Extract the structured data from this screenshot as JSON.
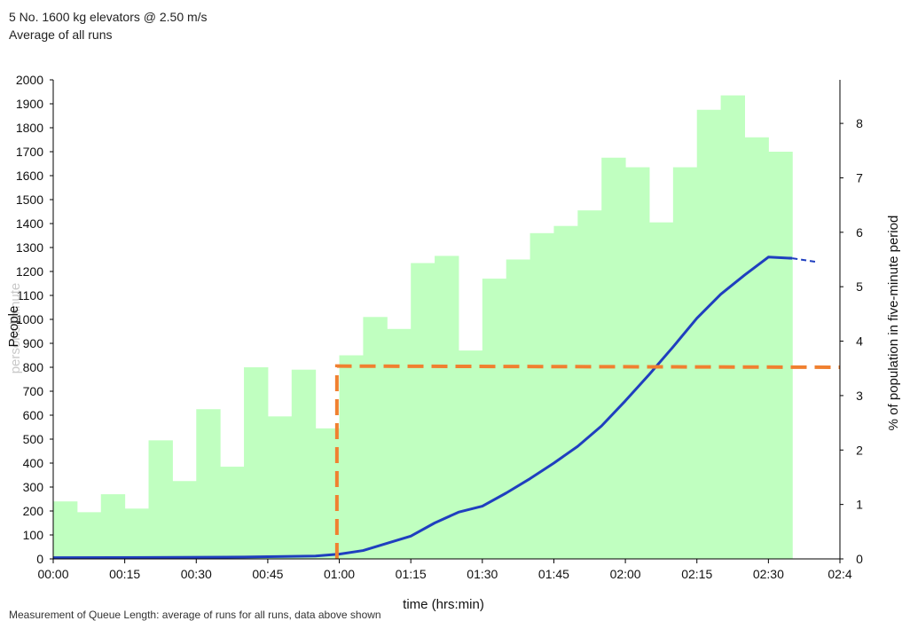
{
  "chart_data": {
    "type": "bar",
    "title": "5 No. 1600 kg elevators @ 2.50 m/s",
    "subtitle": "Average of all runs",
    "xlabel": "time (hrs:min)",
    "ylabel_left": "People",
    "ylabel_left_ghost": "persons/minute",
    "ylabel_right": "% of population in five-minute period",
    "x_ticks": [
      "00:00",
      "00:15",
      "00:30",
      "00:45",
      "01:00",
      "01:15",
      "01:30",
      "01:45",
      "02:00",
      "02:15",
      "02:30",
      "02:4"
    ],
    "x_range_minutes": [
      0,
      165
    ],
    "y_left_ticks": [
      0,
      100,
      200,
      300,
      400,
      500,
      600,
      700,
      800,
      900,
      1000,
      1100,
      1200,
      1300,
      1400,
      1500,
      1600,
      1700,
      1800,
      1900,
      2000
    ],
    "y_left_labels": [
      "0",
      "100",
      "200",
      "300",
      "400",
      "500",
      "600",
      "700",
      "800",
      "900",
      "1000",
      "1100",
      "1200",
      "1300",
      "1400",
      "1500",
      "1600",
      "1700",
      "1800",
      "1900",
      "2000"
    ],
    "ylim_left": [
      0,
      2000
    ],
    "y_right_ticks": [
      0,
      1,
      2,
      3,
      4,
      5,
      6,
      7,
      8
    ],
    "y_right_labels": [
      "0",
      "1",
      "2",
      "3",
      "4",
      "5",
      "6",
      "7",
      "8"
    ],
    "ylim_right": [
      0,
      8.8
    ],
    "bar_series": {
      "name": "",
      "color": "#c0ffc0",
      "bin_minutes": 5,
      "start_minutes": [
        0,
        5,
        10,
        15,
        20,
        25,
        30,
        35,
        40,
        45,
        50,
        55,
        60,
        65,
        70,
        75,
        80,
        85,
        90,
        95,
        100,
        105,
        110,
        115,
        120,
        125,
        130,
        135,
        140,
        145,
        150,
        155
      ],
      "values": [
        240,
        195,
        270,
        210,
        495,
        325,
        625,
        385,
        800,
        595,
        790,
        545,
        850,
        1010,
        960,
        1235,
        1265,
        870,
        1170,
        1250,
        1360,
        1390,
        1455,
        1675,
        1635,
        1405,
        1635,
        1875,
        1935,
        1760,
        1700,
        0
      ]
    },
    "line_series": [
      {
        "name": "",
        "color": "#1f3fbf",
        "style": "solid",
        "x_minutes": [
          0,
          20,
          40,
          55,
          60,
          65,
          70,
          75,
          80,
          85,
          90,
          95,
          100,
          105,
          110,
          115,
          120,
          125,
          130,
          135,
          140,
          145,
          150,
          155
        ],
        "values": [
          5,
          6,
          8,
          12,
          20,
          35,
          65,
          95,
          150,
          195,
          220,
          275,
          335,
          400,
          470,
          555,
          660,
          770,
          885,
          1005,
          1105,
          1185,
          1260,
          1255
        ]
      },
      {
        "name": "",
        "color": "#1f3fbf",
        "style": "dashed",
        "x_minutes": [
          155,
          160
        ],
        "values": [
          1255,
          1240
        ]
      },
      {
        "name": "",
        "color": "#f08030",
        "style": "dashed",
        "x_minutes": [
          59.5,
          59.5,
          165
        ],
        "values": [
          0,
          805,
          800
        ]
      }
    ]
  },
  "footnote": "Measurement of Queue Length: average of runs for all runs, data above shown"
}
